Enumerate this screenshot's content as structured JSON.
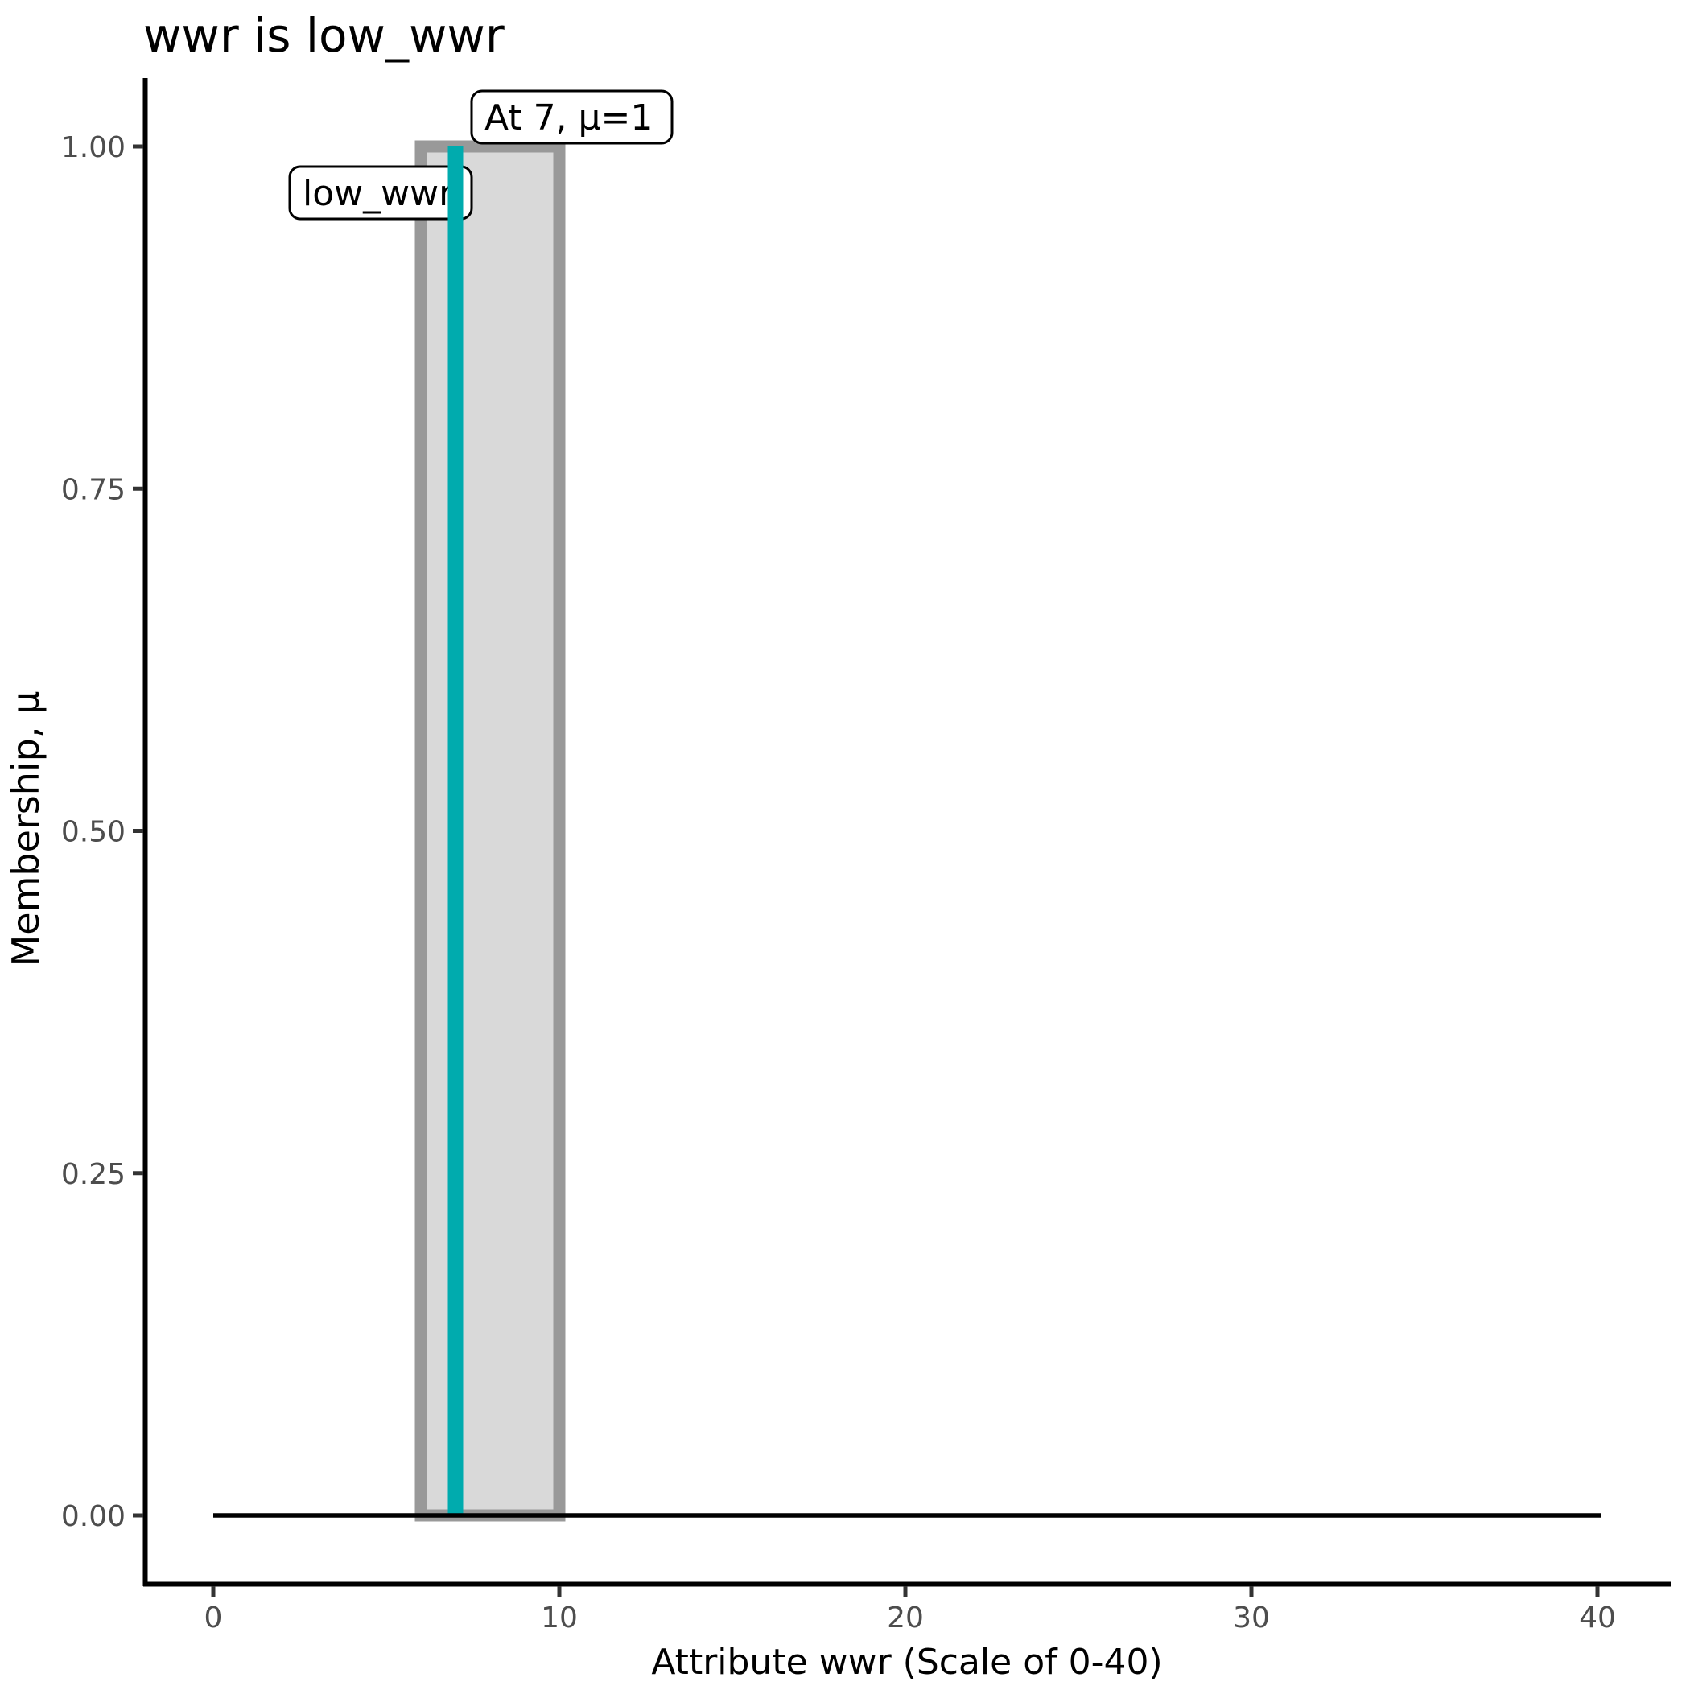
{
  "title": "wwr is low_wwr",
  "axes": {
    "x": {
      "label": "Attribute wwr (Scale of 0-40)",
      "ticks": [
        {
          "label": "0",
          "value": 0
        },
        {
          "label": "10",
          "value": 10
        },
        {
          "label": "20",
          "value": 20
        },
        {
          "label": "30",
          "value": 30
        },
        {
          "label": "40",
          "value": 40
        }
      ]
    },
    "y": {
      "label": "Membership, µ",
      "ticks": [
        {
          "label": "0.00",
          "value": 0.0
        },
        {
          "label": "0.25",
          "value": 0.25
        },
        {
          "label": "0.50",
          "value": 0.5
        },
        {
          "label": "0.75",
          "value": 0.75
        },
        {
          "label": "1.00",
          "value": 1.0
        }
      ]
    }
  },
  "annotations": [
    {
      "text": "low_wwr",
      "anchor_x": 6,
      "anchor_mu": 0.95
    },
    {
      "text": "At 7, µ=1",
      "anchor_x": 7,
      "anchor_mu": 1.0
    }
  ],
  "colors": {
    "background": "#ffffff",
    "axis_line": "#000000",
    "tick_mark": "#333333",
    "tick_text": "#4d4d4d",
    "title_text": "#000000",
    "mf_fill": "#d9d9d9",
    "mf_border": "#999999",
    "baseline": "#000000",
    "marker_line": "#00abae",
    "annotation_fill": "#ffffff",
    "annotation_border": "#000000"
  },
  "chart_data": {
    "type": "area",
    "title": "wwr is low_wwr",
    "xlabel": "Attribute wwr (Scale of 0-40)",
    "ylabel": "Membership, µ",
    "xlim": [
      0,
      40
    ],
    "ylim": [
      0,
      1
    ],
    "x_ticks": [
      0,
      10,
      20,
      30,
      40
    ],
    "y_ticks": [
      0.0,
      0.25,
      0.5,
      0.75,
      1.0
    ],
    "grid": false,
    "legend": "none",
    "membership_function": {
      "name": "low_wwr",
      "shape": "rectangular",
      "core_start": 6,
      "core_end": 10,
      "core_mu": 1,
      "support_start": 0,
      "support_end": 40,
      "outside_mu": 0,
      "points": [
        [
          0,
          0
        ],
        [
          6,
          0
        ],
        [
          6,
          1
        ],
        [
          10,
          1
        ],
        [
          10,
          0
        ],
        [
          40,
          0
        ]
      ]
    },
    "marked_value": {
      "x": 7,
      "mu": 1,
      "label": "At 7, µ=1"
    }
  }
}
